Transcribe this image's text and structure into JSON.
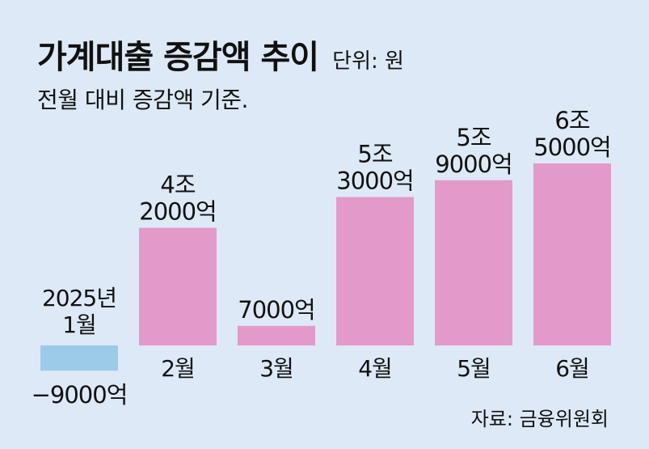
{
  "header": {
    "title": "가계대출 증감액 추이",
    "unit": "단위: 원",
    "subtitle": "전월 대비 증감액 기준."
  },
  "footer": {
    "source": "자료: 금융위원회"
  },
  "colors": {
    "background": "#dde9f6",
    "positive_bar": "#e39acb",
    "negative_bar": "#9ccbea"
  },
  "chart_data": {
    "type": "bar",
    "title": "가계대출 증감액 추이",
    "subtitle": "전월 대비 증감액 기준.",
    "unit": "원",
    "ylabel": "",
    "xlabel": "",
    "grid": false,
    "categories": [
      [
        "2025년",
        "1월"
      ],
      [
        "2월"
      ],
      [
        "3월"
      ],
      [
        "4월"
      ],
      [
        "5월"
      ],
      [
        "6월"
      ]
    ],
    "values": [
      -900000000000,
      4200000000000,
      700000000000,
      5300000000000,
      5900000000000,
      6500000000000
    ],
    "data_labels": [
      [
        "−9000억"
      ],
      [
        "4조",
        "2000억"
      ],
      [
        "7000억"
      ],
      [
        "5조",
        "3000억"
      ],
      [
        "5조",
        "9000억"
      ],
      [
        "6조",
        "5000억"
      ]
    ],
    "ylim": [
      -900000000000,
      6500000000000
    ]
  }
}
